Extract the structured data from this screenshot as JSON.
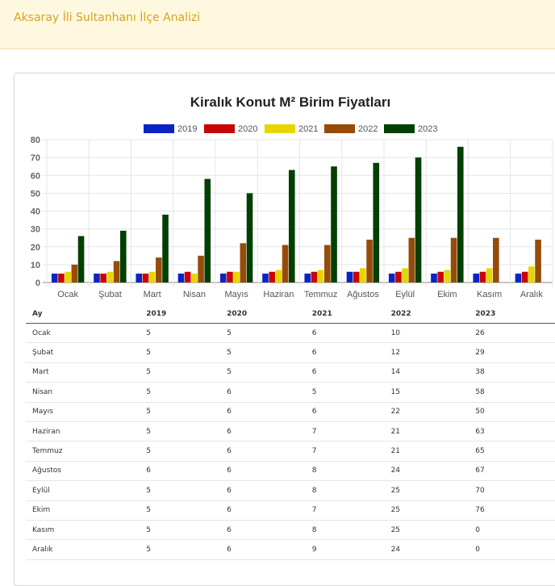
{
  "header": {
    "title": "Aksaray İli Sultanhanı İlçe Analizi"
  },
  "chart_data": {
    "type": "bar",
    "title": "Kiralık Konut M² Birim Fiyatları",
    "categories": [
      "Ocak",
      "Şubat",
      "Mart",
      "Nisan",
      "Mayıs",
      "Haziran",
      "Temmuz",
      "Ağustos",
      "Eylül",
      "Ekim",
      "Kasım",
      "Aralık"
    ],
    "series": [
      {
        "name": "2019",
        "color": "#0a24c4",
        "values": [
          5,
          5,
          5,
          5,
          5,
          5,
          5,
          6,
          5,
          5,
          5,
          5
        ]
      },
      {
        "name": "2020",
        "color": "#c90404",
        "values": [
          5,
          5,
          5,
          6,
          6,
          6,
          6,
          6,
          6,
          6,
          6,
          6
        ]
      },
      {
        "name": "2021",
        "color": "#e8d500",
        "values": [
          6,
          6,
          6,
          5,
          6,
          7,
          7,
          8,
          8,
          7,
          8,
          9
        ]
      },
      {
        "name": "2022",
        "color": "#964c09",
        "values": [
          10,
          12,
          14,
          15,
          22,
          21,
          21,
          24,
          25,
          25,
          25,
          24
        ]
      },
      {
        "name": "2023",
        "color": "#024002",
        "values": [
          26,
          29,
          38,
          58,
          50,
          63,
          65,
          67,
          70,
          76,
          0,
          0
        ]
      }
    ],
    "ylim": [
      0,
      80
    ],
    "yticks": [
      0,
      10,
      20,
      30,
      40,
      50,
      60,
      70,
      80
    ],
    "legend": "top",
    "grid": true
  },
  "table": {
    "headers": [
      "Ay",
      "2019",
      "2020",
      "2021",
      "2022",
      "2023"
    ]
  }
}
